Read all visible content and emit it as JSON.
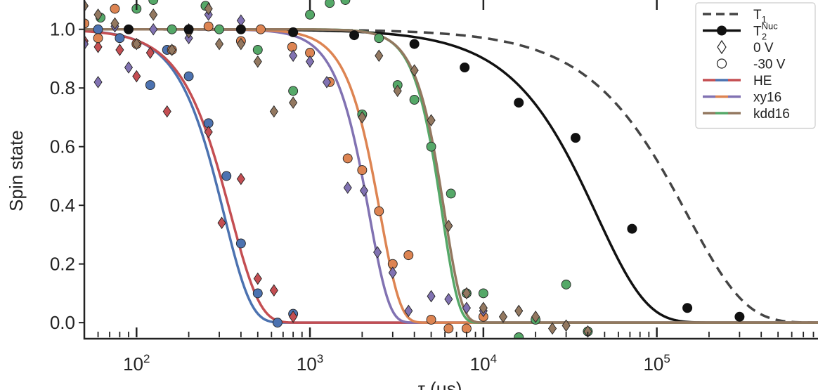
{
  "chart_data": {
    "type": "scatter",
    "title": "",
    "xlabel": "τ (μs)",
    "ylabel": "Spin state",
    "xscale": "log",
    "xlim": [
      50,
      850000
    ],
    "ylim": [
      -0.05,
      1.1
    ],
    "x_ticks": [
      100,
      1000,
      10000,
      100000
    ],
    "x_tick_labels": [
      {
        "base": "10",
        "exp": "2"
      },
      {
        "base": "10",
        "exp": "3"
      },
      {
        "base": "10",
        "exp": "4"
      },
      {
        "base": "10",
        "exp": "5"
      }
    ],
    "y_ticks": [
      0.0,
      0.2,
      0.4,
      0.6,
      0.8,
      1.0
    ],
    "y_tick_labels": [
      "0.0",
      "0.2",
      "0.4",
      "0.6",
      "0.8",
      "1.0"
    ],
    "grid": false,
    "legend": {
      "placement": "top-right",
      "entries": [
        {
          "label": "T",
          "sub": "1",
          "sup": "",
          "marker": "dashed-line"
        },
        {
          "label": "T",
          "sub": "2",
          "sup": "Nuc",
          "marker": "line-dot"
        },
        {
          "label": "0 V",
          "sub": "",
          "sup": "",
          "marker": "open-diamond"
        },
        {
          "label": "-30 V",
          "sub": "",
          "sup": "",
          "marker": "open-circle"
        },
        {
          "label": "HE",
          "sub": "",
          "sup": "",
          "marker": "multi-line",
          "colors": [
            "#c44e52",
            "#4c72b0"
          ]
        },
        {
          "label": "xy16",
          "sub": "",
          "sup": "",
          "marker": "multi-line",
          "colors": [
            "#8172b2",
            "#dd8452"
          ]
        },
        {
          "label": "kdd16",
          "sub": "",
          "sup": "",
          "marker": "multi-line",
          "colors": [
            "#937860",
            "#55a868"
          ]
        }
      ]
    },
    "colors": {
      "HE_circle": "#4c72b0",
      "HE_diamond": "#c44e52",
      "xy16_circle": "#dd8452",
      "xy16_diamond": "#8172b2",
      "kdd16_circle": "#55a868",
      "kdd16_diamond": "#937860",
      "T2nuc": "#111111",
      "T1": "#444444"
    },
    "curves": [
      {
        "label": "T1",
        "color": "#444444",
        "dashed": true,
        "T": 150000,
        "n": 1.3
      },
      {
        "label": "T2Nuc",
        "color": "#111111",
        "dashed": false,
        "T": 45000,
        "n": 1.5
      },
      {
        "label": "HE",
        "color": "#4c72b0",
        "dashed": false,
        "T": 320,
        "n": 2.8
      },
      {
        "label": "HE",
        "color": "#c44e52",
        "dashed": false,
        "T": 350,
        "n": 2.6
      },
      {
        "label": "xy16",
        "color": "#8172b2",
        "dashed": false,
        "T": 2200,
        "n": 3.8
      },
      {
        "label": "xy16",
        "color": "#dd8452",
        "dashed": false,
        "T": 2550,
        "n": 3.8
      },
      {
        "label": "kdd16",
        "color": "#55a868",
        "dashed": false,
        "T": 5800,
        "n": 4.6
      },
      {
        "label": "kdd16",
        "color": "#937860",
        "dashed": false,
        "T": 6000,
        "n": 4.4
      }
    ],
    "series": [
      {
        "name": "HE",
        "marker": "circle",
        "color": "#4c72b0",
        "x": [
          50,
          60,
          80,
          100,
          120,
          150,
          200,
          260,
          330,
          400,
          500,
          650,
          800
        ],
        "y": [
          1.02,
          1.0,
          0.97,
          0.95,
          0.81,
          0.93,
          0.84,
          0.68,
          0.5,
          0.27,
          0.1,
          0.0,
          0.03
        ]
      },
      {
        "name": "HE",
        "marker": "diamond",
        "color": "#c44e52",
        "x": [
          50,
          60,
          80,
          100,
          120,
          150,
          200,
          260,
          310,
          400,
          500,
          620,
          800
        ],
        "y": [
          0.96,
          0.94,
          0.93,
          0.84,
          0.92,
          0.72,
          1.0,
          0.65,
          0.34,
          0.49,
          0.15,
          0.11,
          0.02
        ]
      },
      {
        "name": "xy16",
        "marker": "circle",
        "color": "#dd8452",
        "x": [
          50,
          60,
          75,
          100,
          160,
          260,
          400,
          520,
          790,
          1000,
          1300,
          1650,
          2000,
          2500,
          3000,
          3700,
          5000,
          6300,
          8000,
          10000
        ],
        "y": [
          1.02,
          0.97,
          1.07,
          0.95,
          0.93,
          1.01,
          0.96,
          1.0,
          0.94,
          0.92,
          0.82,
          0.56,
          0.52,
          0.38,
          0.2,
          0.23,
          0.01,
          -0.02,
          -0.02,
          0.02
        ]
      },
      {
        "name": "xy16",
        "marker": "diamond",
        "color": "#8172b2",
        "x": [
          50,
          60,
          75,
          90,
          125,
          200,
          260,
          400,
          800,
          1000,
          1250,
          1650,
          2050,
          2450,
          3000,
          3700,
          5000,
          6300,
          8000,
          10000
        ],
        "y": [
          0.95,
          0.82,
          1.01,
          0.87,
          1.0,
          0.97,
          1.05,
          1.03,
          0.91,
          0.89,
          0.82,
          0.46,
          0.45,
          0.24,
          0.17,
          0.04,
          0.09,
          0.08,
          0.05,
          0.04
        ]
      },
      {
        "name": "kdd16",
        "marker": "circle",
        "color": "#55a868",
        "x": [
          62,
          100,
          125,
          160,
          250,
          300,
          500,
          800,
          1000,
          1300,
          1600,
          2000,
          2500,
          3200,
          4000,
          5000,
          6500,
          8000,
          10000,
          16000,
          20000,
          30000,
          40000
        ],
        "y": [
          1.04,
          1.07,
          1.1,
          1.0,
          1.08,
          1.0,
          0.93,
          0.79,
          1.05,
          1.09,
          1.1,
          0.71,
          0.97,
          0.81,
          0.76,
          0.6,
          0.44,
          0.1,
          0.1,
          -0.05,
          0.01,
          0.13,
          -0.03
        ]
      },
      {
        "name": "kdd16",
        "marker": "diamond",
        "color": "#937860",
        "x": [
          50,
          60,
          75,
          100,
          125,
          160,
          200,
          260,
          300,
          400,
          500,
          620,
          800,
          2000,
          2500,
          3200,
          4000,
          5000,
          6300,
          8000,
          10000,
          13000,
          16000,
          20000,
          25000,
          30000,
          40000
        ],
        "y": [
          1.08,
          1.05,
          1.02,
          0.95,
          1.05,
          0.93,
          0.99,
          1.07,
          0.95,
          0.95,
          0.89,
          0.72,
          0.75,
          0.7,
          0.91,
          0.79,
          0.86,
          0.69,
          0.33,
          0.1,
          0.05,
          0.02,
          0.04,
          0.02,
          -0.02,
          -0.01,
          -0.03
        ]
      },
      {
        "name": "T2Nuc",
        "marker": "filled-circle",
        "color": "#111111",
        "x": [
          90,
          200,
          400,
          800,
          1800,
          4000,
          7800,
          16000,
          34000,
          72000,
          150000,
          300000
        ],
        "y": [
          1.0,
          1.0,
          1.0,
          0.99,
          0.98,
          0.95,
          0.87,
          0.75,
          0.63,
          0.32,
          0.05,
          0.02
        ]
      }
    ]
  }
}
